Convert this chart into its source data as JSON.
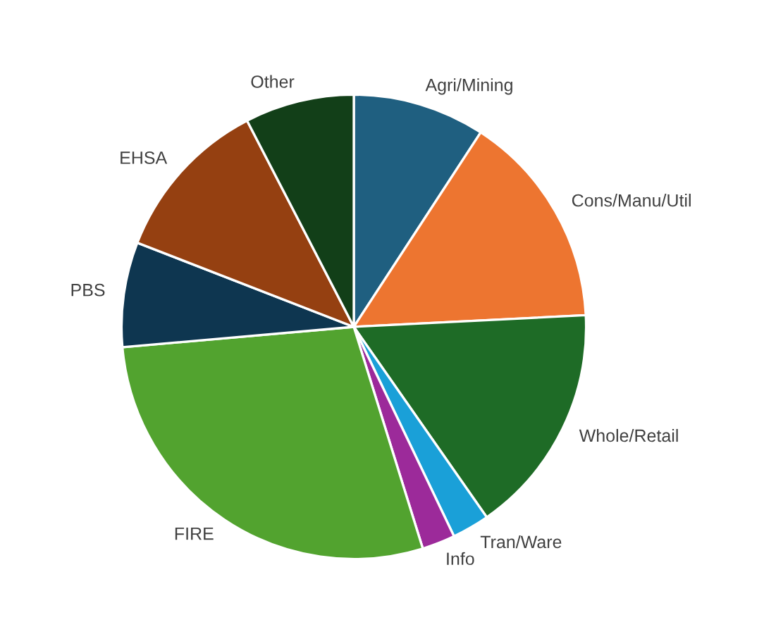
{
  "chart_data": {
    "type": "pie",
    "categories": [
      "Agri/Mining",
      "Cons/Manu/Util",
      "Whole/Retail",
      "Tran/Ware",
      "Info",
      "FIRE",
      "PBS",
      "EHSA",
      "Other"
    ],
    "values": [
      9.2,
      15.0,
      16.1,
      2.6,
      2.3,
      28.4,
      7.3,
      11.5,
      7.6
    ],
    "colors": [
      "#1f5f80",
      "#ed7530",
      "#1e6b26",
      "#1aa0d8",
      "#9c2a9a",
      "#52a32f",
      "#0e3650",
      "#954011",
      "#123f18"
    ],
    "legend": false
  }
}
